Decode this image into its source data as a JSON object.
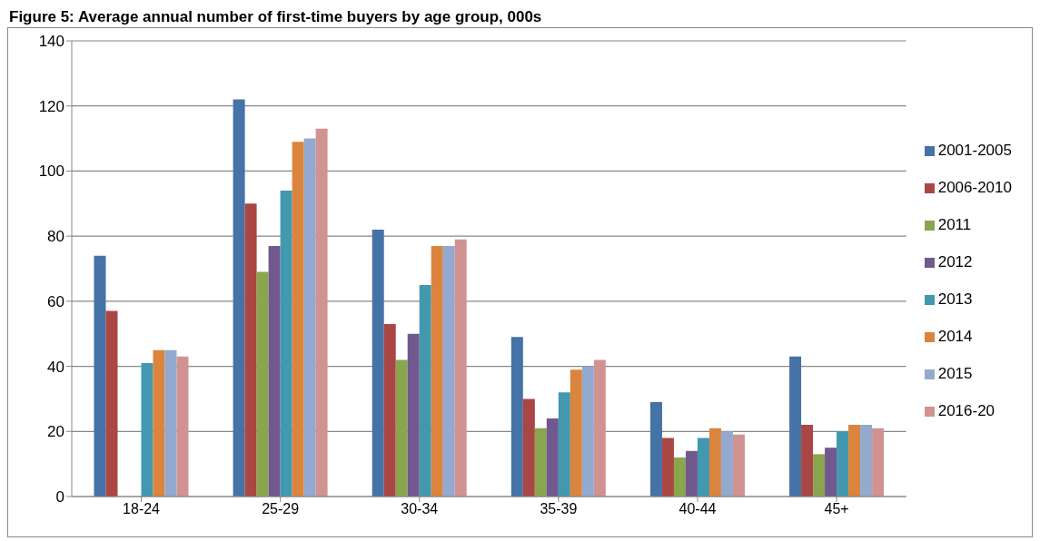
{
  "chart_data": {
    "type": "bar",
    "title": "Figure 5: Average annual number of first-time buyers by age group, 000s",
    "categories": [
      "18-24",
      "25-29",
      "30-34",
      "35-39",
      "40-44",
      "45+"
    ],
    "series": [
      {
        "name": "2001-2005",
        "color": "#4572a7",
        "values": [
          74,
          122,
          82,
          49,
          29,
          43
        ]
      },
      {
        "name": "2006-2010",
        "color": "#aa4643",
        "values": [
          57,
          90,
          53,
          30,
          18,
          22
        ]
      },
      {
        "name": "2011",
        "color": "#89a54e",
        "values": [
          null,
          69,
          42,
          21,
          12,
          13
        ]
      },
      {
        "name": "2012",
        "color": "#71588f",
        "values": [
          null,
          77,
          50,
          24,
          14,
          15
        ]
      },
      {
        "name": "2013",
        "color": "#4198af",
        "values": [
          41,
          94,
          65,
          32,
          18,
          20
        ]
      },
      {
        "name": "2014",
        "color": "#db843d",
        "values": [
          45,
          109,
          77,
          39,
          21,
          22
        ]
      },
      {
        "name": "2015",
        "color": "#93a9cf",
        "values": [
          45,
          110,
          77,
          40,
          20,
          22
        ]
      },
      {
        "name": "2016-20",
        "color": "#d19392",
        "values": [
          43,
          113,
          79,
          42,
          19,
          21
        ]
      }
    ],
    "ylim": [
      0,
      140
    ],
    "yticks": [
      0,
      20,
      40,
      60,
      80,
      100,
      120,
      140
    ],
    "grid": "y",
    "legend": "right"
  }
}
